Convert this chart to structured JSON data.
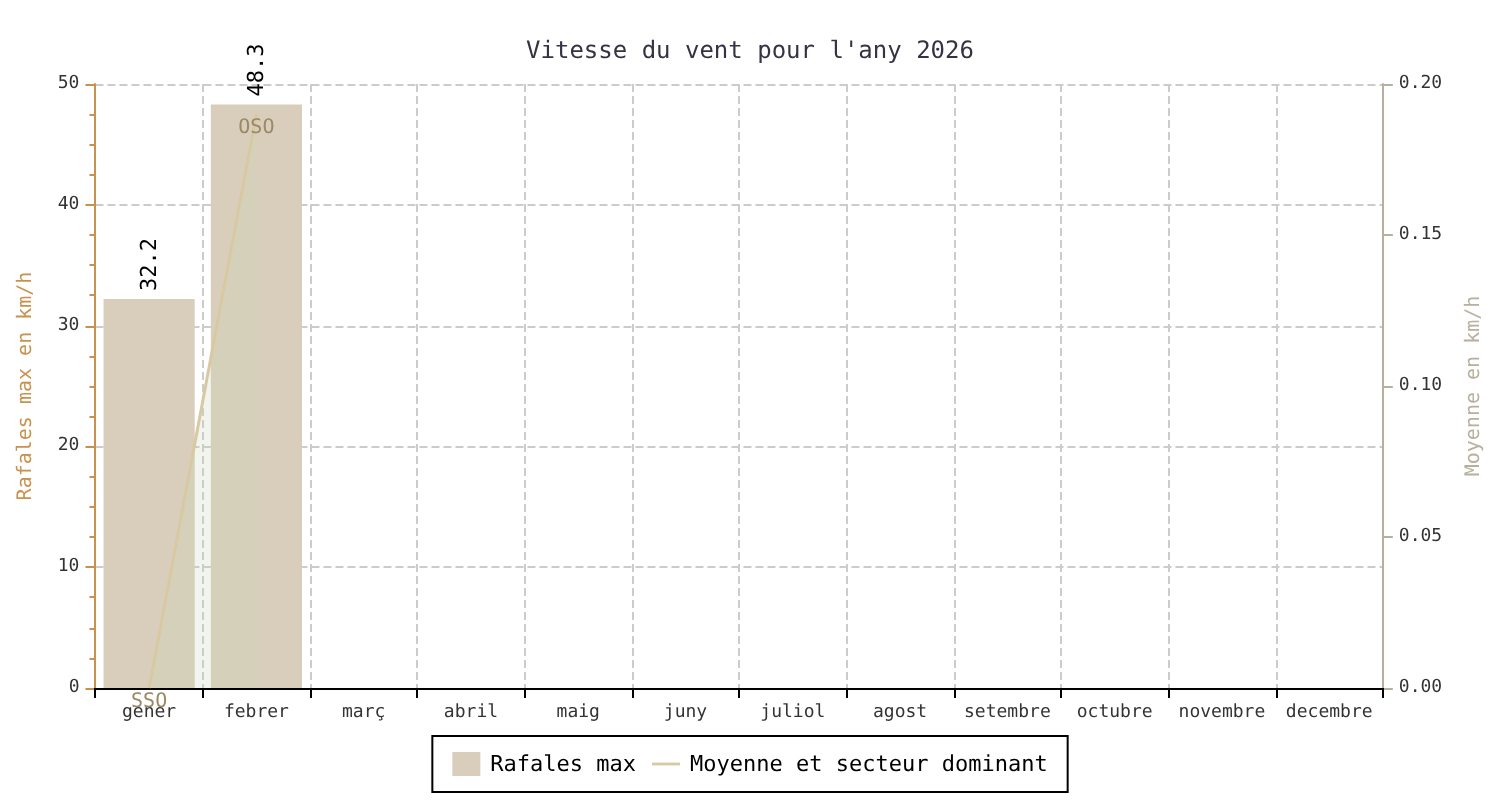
{
  "chart_data": {
    "type": "bar",
    "title": "Vitesse du vent pour l'any 2026",
    "categories": [
      "gener",
      "febrer",
      "març",
      "abril",
      "maig",
      "juny",
      "juliol",
      "agost",
      "setembre",
      "octubre",
      "novembre",
      "decembre"
    ],
    "series": [
      {
        "name": "Rafales max",
        "color": "#d9cebc",
        "values": [
          32.2,
          48.3,
          null,
          null,
          null,
          null,
          null,
          null,
          null,
          null,
          null,
          null
        ],
        "value_labels": [
          "32.2",
          "48.3",
          null,
          null,
          null,
          null,
          null,
          null,
          null,
          null,
          null,
          null
        ]
      },
      {
        "name": "Moyenne et secteur dominant",
        "type": "area",
        "axis": "y2",
        "color": "#d8c9a3",
        "values": [
          0,
          0.19,
          null,
          null,
          null,
          null,
          null,
          null,
          null,
          null,
          null,
          null
        ],
        "value_labels": [
          "SSO",
          "OSO",
          null,
          null,
          null,
          null,
          null,
          null,
          null,
          null,
          null,
          null
        ]
      }
    ],
    "ylabel": "Rafales max en km/h",
    "y2label": "Moyenne en km/h",
    "ylim": [
      0,
      50
    ],
    "yticks": [
      0,
      10,
      20,
      30,
      40,
      50
    ],
    "y2lim": [
      0,
      0.2
    ],
    "y2ticks": [
      {
        "value": 0,
        "label": "0.00"
      },
      {
        "value": 0.05,
        "label": "0.05"
      },
      {
        "value": 0.1,
        "label": "0.10"
      },
      {
        "value": 0.15,
        "label": "0.15"
      },
      {
        "value": 0.2,
        "label": "0.20"
      }
    ],
    "grid": true,
    "legend": "bottom",
    "marker": "none"
  }
}
